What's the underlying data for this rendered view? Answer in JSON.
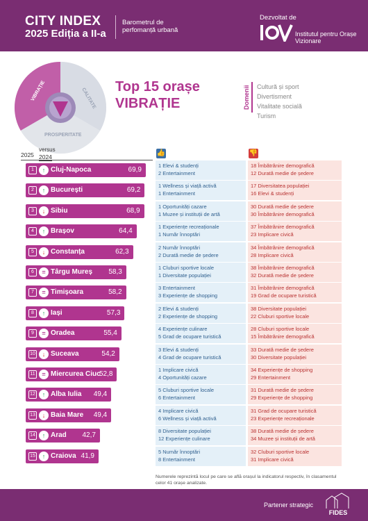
{
  "header": {
    "title": "CITY INDEX",
    "subtitle": "2025 Ediția a II-a",
    "barometer": "Barometrul de perfomanță urbană",
    "developed_by": "Dezvoltat de",
    "institute": "Institutul pentru Orașe Vizionare"
  },
  "wheel": {
    "labels": [
      "VIBRAȚIE",
      "CALITATE",
      "PROSPERITATE"
    ]
  },
  "main_title_1": "Top 15 orașe",
  "main_title_2": "VIBRAȚIE",
  "domains_label": "Domenii",
  "domains": [
    "Cultură și sport",
    "Divertisment",
    "Vitalitate socială",
    "Turism"
  ],
  "column_headers": {
    "year_current": "2025",
    "versus": "versus",
    "year_prev": "2024"
  },
  "icons": {
    "positive": "thumbs-up-icon",
    "negative": "thumbs-down-icon"
  },
  "colors": {
    "brand": "#7a2d72",
    "bar": "#b0358f",
    "positive_bg": "#e4f0f8",
    "negative_bg": "#fbe4e0"
  },
  "rows": [
    {
      "rank": "1",
      "trend": "up",
      "city": "Cluj-Napoca",
      "score": "69,9",
      "pos": [
        "1  Elevi & studenți",
        "2  Entertainment"
      ],
      "neg": [
        "18  Îmbătrânire demografică",
        "12  Durată medie de ședere"
      ]
    },
    {
      "rank": "2",
      "trend": "up",
      "city": "București",
      "score": "69,2",
      "pos": [
        "1  Wellness și viață activă",
        "1  Entertainment"
      ],
      "neg": [
        "17  Diversitatea populației",
        "16  Elevi & studenți"
      ]
    },
    {
      "rank": "3",
      "trend": "down",
      "city": "Sibiu",
      "score": "68,9",
      "pos": [
        "1  Oportunități cazare",
        "1  Muzee și instituții de artă"
      ],
      "neg": [
        "30  Durată medie de ședere",
        "30  Îmbătrânire demografică"
      ]
    },
    {
      "rank": "4",
      "trend": "up",
      "city": "Brașov",
      "score": "64,4",
      "pos": [
        "1  Experiențe recreaționale",
        "1  Număr înnoptări"
      ],
      "neg": [
        "37  Îmbătrânire demografică",
        "23  Implicare civică"
      ]
    },
    {
      "rank": "5",
      "trend": "down",
      "city": "Constanța",
      "score": "62,3",
      "pos": [
        "2  Număr înnoptări",
        "2  Durată medie de ședere"
      ],
      "neg": [
        "34  Îmbătrânire demografică",
        "28  Implicare civică"
      ]
    },
    {
      "rank": "6",
      "trend": "same",
      "city": "Târgu Mureș",
      "score": "58,3",
      "pos": [
        "1  Cluburi sportive locale",
        "1  Diversitate populației"
      ],
      "neg": [
        "38  Îmbătrânire demografică",
        "32  Durată medie de ședere"
      ]
    },
    {
      "rank": "7",
      "trend": "same",
      "city": "Timișoara",
      "score": "58,2",
      "pos": [
        "3  Entertainment",
        "3  Experiențe de shopping"
      ],
      "neg": [
        "31  Îmbătrânire demografică",
        "19  Grad de ocupare turistică"
      ]
    },
    {
      "rank": "8",
      "trend": "up",
      "city": "Iași",
      "score": "57,3",
      "pos": [
        "2  Elevi & studenți",
        "2  Experiențe de shopping"
      ],
      "neg": [
        "38  Diversitate populației",
        "22  Cluburi sportive locale"
      ]
    },
    {
      "rank": "9",
      "trend": "same",
      "city": "Oradea",
      "score": "55,4",
      "pos": [
        "4  Experiențe culinare",
        "5  Grad de ocupare turistică"
      ],
      "neg": [
        "28  Cluburi sportive locale",
        "15  Îmbătrânire demografică"
      ]
    },
    {
      "rank": "10",
      "trend": "down",
      "city": "Suceava",
      "score": "54,2",
      "pos": [
        "3  Elevi & studenți",
        "4  Grad de ocupare turistică"
      ],
      "neg": [
        "33  Durată medie de ședere",
        "30  Diversitate populației"
      ]
    },
    {
      "rank": "11",
      "trend": "same",
      "city": "Miercurea Ciuc",
      "score": "52,8",
      "pos": [
        "1  Implicare civică",
        "4  Oportunități cazare"
      ],
      "neg": [
        "34  Experiențe de shopping",
        "29  Entertainment"
      ]
    },
    {
      "rank": "12",
      "trend": "up",
      "city": "Alba Iulia",
      "score": "49,4",
      "pos": [
        "5  Cluburi sportive locale",
        "6  Entertainment"
      ],
      "neg": [
        "31  Durată medie de ședere",
        "29  Experiențe de shopping"
      ]
    },
    {
      "rank": "13",
      "trend": "down",
      "city": "Baia Mare",
      "score": "49,4",
      "pos": [
        "4  Implicare civică",
        "6  Wellness și viață activă"
      ],
      "neg": [
        "31  Grad de ocupare turistică",
        "23  Experiențe recreaționale"
      ]
    },
    {
      "rank": "14",
      "trend": "up",
      "city": "Arad",
      "score": "42,7",
      "pos": [
        "8  Diversitate populației",
        "12 Experiențe culinare"
      ],
      "neg": [
        "38  Durată medie de ședere",
        "34  Muzee și instituții de artă"
      ]
    },
    {
      "rank": "15",
      "trend": "up",
      "city": "Craiova",
      "score": "41,9",
      "pos": [
        "5  Număr înnoptări",
        "8  Entertainment"
      ],
      "neg": [
        "32  Cluburi sportive locale",
        "31  Implicare civică"
      ]
    }
  ],
  "footnote": "Numerele reprezintă locul pe care se află orașul la indicatorul respectiv, în clasamentul celor 41 orașe analizate.",
  "footer": {
    "partner": "Partener strategic",
    "partner_logo_text": "FIDES"
  }
}
